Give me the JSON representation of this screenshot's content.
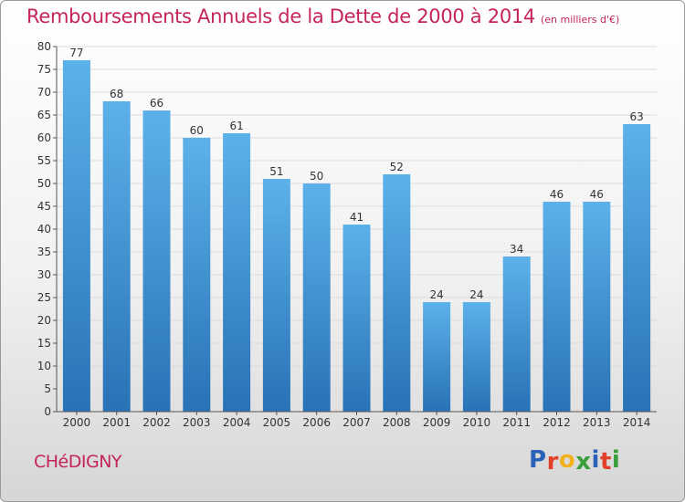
{
  "chart_data": {
    "type": "bar",
    "title": "Remboursements Annuels de la Dette de 2000 à 2014",
    "unit_note": "(en milliers d'€)",
    "categories": [
      "2000",
      "2001",
      "2002",
      "2003",
      "2004",
      "2005",
      "2006",
      "2007",
      "2008",
      "2009",
      "2010",
      "2011",
      "2012",
      "2013",
      "2014"
    ],
    "values": [
      77,
      68,
      66,
      60,
      61,
      51,
      50,
      41,
      52,
      24,
      24,
      34,
      46,
      46,
      63
    ],
    "ylim": [
      0,
      80
    ],
    "yticks": [
      0,
      5,
      10,
      15,
      20,
      25,
      30,
      35,
      40,
      45,
      50,
      55,
      60,
      65,
      70,
      75,
      80
    ],
    "xlabel": "",
    "ylabel": "",
    "grid": true
  },
  "footer": {
    "commune": "CHéDIGNY",
    "logo_letters": [
      "P",
      "r",
      "o",
      "x",
      "i",
      "t",
      "i"
    ],
    "logo_colors": [
      "#2a62b8",
      "#e2402a",
      "#f2b21e",
      "#3a9f3a",
      "#2a62b8",
      "#e2402a",
      "#3a9f3a"
    ]
  },
  "colors": {
    "title": "#c4245a",
    "bar_top": "#5db1ea",
    "bar_bottom": "#2872b5"
  }
}
